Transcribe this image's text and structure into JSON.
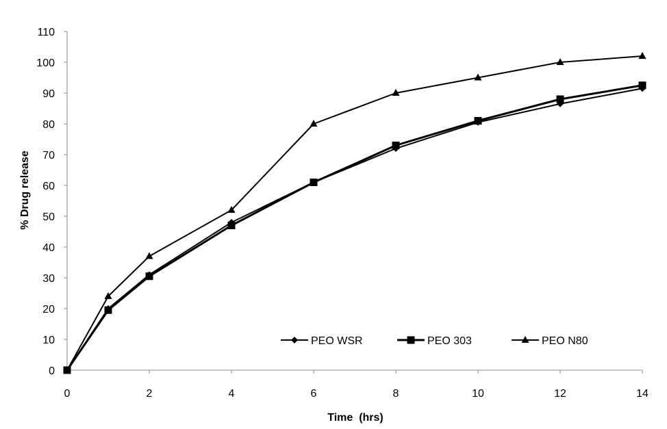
{
  "chart_data": {
    "type": "line",
    "title": "",
    "xlabel": "Time  (hrs)",
    "ylabel": "% Drug release",
    "xlim": [
      0,
      14
    ],
    "ylim": [
      0,
      110
    ],
    "xticks": [
      0,
      2,
      4,
      6,
      8,
      10,
      12,
      14
    ],
    "yticks": [
      0,
      10,
      20,
      30,
      40,
      50,
      60,
      70,
      80,
      90,
      100,
      110
    ],
    "grid": false,
    "legend_position": "bottom-right",
    "series": [
      {
        "name": "PEO WSR",
        "marker": "diamond",
        "x": [
          0,
          1,
          2,
          4,
          6,
          8,
          10,
          12,
          14
        ],
        "values": [
          0,
          20,
          31,
          48,
          61,
          72,
          80.5,
          86.5,
          91.5
        ]
      },
      {
        "name": "PEO 303",
        "marker": "square",
        "x": [
          0,
          1,
          2,
          4,
          6,
          8,
          10,
          12,
          14
        ],
        "values": [
          0,
          19.5,
          30.5,
          47,
          61,
          73,
          81,
          88,
          92.5
        ]
      },
      {
        "name": "PEO N80",
        "marker": "triangle",
        "x": [
          0,
          1,
          2,
          4,
          6,
          8,
          10,
          12,
          14
        ],
        "values": [
          0,
          24,
          37,
          52,
          80,
          90,
          95,
          100,
          102
        ]
      }
    ]
  }
}
